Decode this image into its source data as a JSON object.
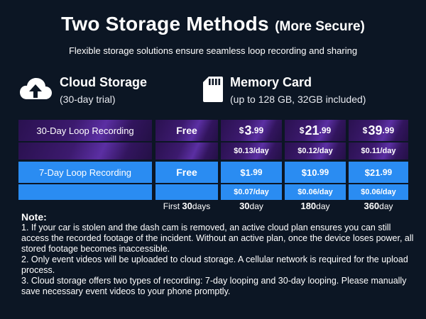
{
  "title": {
    "main": "Two Storage Methods",
    "sub": "(More Secure)"
  },
  "subtitle": "Flexible storage solutions ensure seamless loop recording and sharing",
  "methods": {
    "cloud": {
      "name": "Cloud Storage",
      "desc": "(30-day trial)",
      "icon": "cloud-upload-icon"
    },
    "card": {
      "name": "Memory Card",
      "desc": "(up to 128 GB, 32GB included)",
      "icon": "sd-card-icon"
    }
  },
  "table": {
    "row30": {
      "label": "30-Day Loop Recording",
      "free": "Free",
      "plans": [
        {
          "cur": "$",
          "whole": "3",
          "cents": ".99",
          "perday": "$0.13/day"
        },
        {
          "cur": "$",
          "whole": "21",
          "cents": ".99",
          "perday": "$0.12/day"
        },
        {
          "cur": "$",
          "whole": "39",
          "cents": ".99",
          "perday": "$0.11/day"
        }
      ]
    },
    "row7": {
      "label": "7-Day Loop Recording",
      "free": "Free",
      "plans": [
        {
          "whole": "$1",
          "cents": ".99",
          "perday": "$0.07/day"
        },
        {
          "whole": "$10",
          "cents": ".99",
          "perday": "$0.06/day"
        },
        {
          "whole": "$21",
          "cents": ".99",
          "perday": "$0.06/day"
        }
      ]
    },
    "durations": [
      {
        "text": "First ",
        "num": "30",
        "unit": "days"
      },
      {
        "text": "",
        "num": "30",
        "unit": "day"
      },
      {
        "text": "",
        "num": "180",
        "unit": "day"
      },
      {
        "text": "",
        "num": "360",
        "unit": "day"
      }
    ]
  },
  "notes": {
    "heading": "Note:",
    "items": [
      "1. If your car is stolen and the dash cam is removed, an active cloud plan ensures you can still access the recorded footage of the incident. Without an active plan, once the device loses power, all stored footage becomes inaccessible.",
      "2. Only event videos will be uploaded to cloud storage. A cellular network is required for the upload process.",
      "3. Cloud storage offers two types of recording: 7-day looping and 30-day looping. Please manually save necessary event videos to your phone promptly."
    ]
  },
  "colors": {
    "background": "#0c1624",
    "blue": "#2a8cf2",
    "purple": "#3c1a6e"
  }
}
